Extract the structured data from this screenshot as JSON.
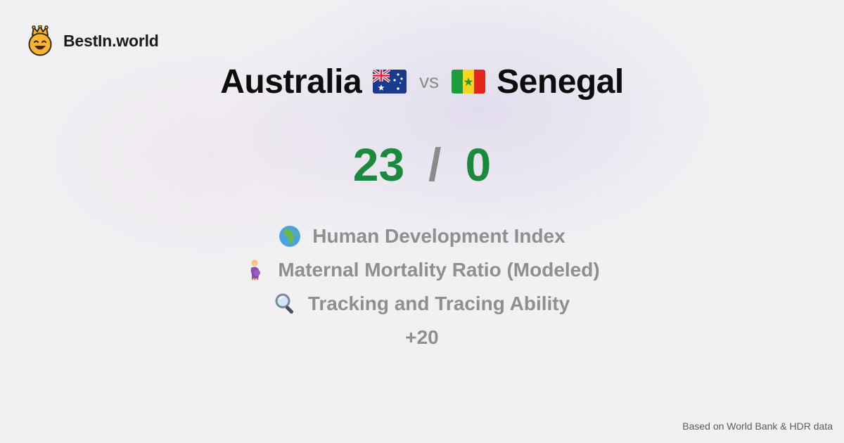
{
  "brand": {
    "name": "BestIn.world",
    "logo_icon": "crowned-smiley-icon"
  },
  "comparison": {
    "left_country": "Australia",
    "left_flag": "australia-flag-icon",
    "vs_label": "vs",
    "right_country": "Senegal",
    "right_flag": "senegal-flag-icon"
  },
  "score": {
    "left": "23",
    "separator": "/",
    "right": "0",
    "color": "#1c8a3c"
  },
  "metrics": [
    {
      "icon": "globe-africa-icon",
      "label": "Human Development Index"
    },
    {
      "icon": "pregnant-woman-icon",
      "label": "Maternal Mortality Ratio (Modeled)"
    },
    {
      "icon": "magnifying-glass-icon",
      "label": "Tracking and Tracing Ability"
    }
  ],
  "more_label": "+20",
  "footer": {
    "source": "Based on World Bank & HDR data"
  }
}
